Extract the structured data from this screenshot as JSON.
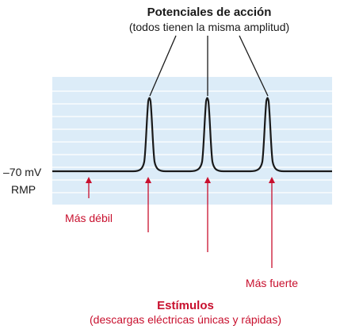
{
  "figure": {
    "title": "Potenciales de acción",
    "subtitle": "(todos tienen la misma amplitud)",
    "rmp_value": "–70 mV",
    "rmp_label": "RMP",
    "weak_label": "Más débil",
    "strong_label": "Más fuerte",
    "stimuli_title": "Estímulos",
    "stimuli_subtitle": "(descargas eléctricas únicas y rápidas)"
  },
  "colors": {
    "band": "#dcecf8",
    "grid": "#ffffff",
    "trace": "#1a1a1a",
    "stimulus": "#c8102e"
  }
}
